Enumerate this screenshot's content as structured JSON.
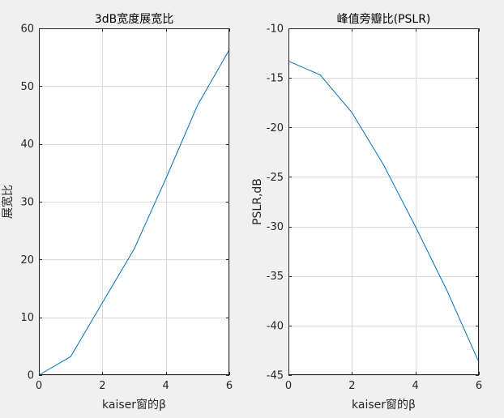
{
  "chart_data": [
    {
      "type": "line",
      "title": "3dB宽度展宽比",
      "xlabel": "kaiser窗的β",
      "ylabel": "展宽比",
      "xlim": [
        0,
        6
      ],
      "ylim": [
        0,
        60
      ],
      "xticks": [
        0,
        2,
        4,
        6
      ],
      "yticks": [
        0,
        10,
        20,
        30,
        40,
        50,
        60
      ],
      "grid": true,
      "color": "#0072BD",
      "series": [
        {
          "x": [
            0,
            1,
            2,
            3,
            4,
            5,
            6
          ],
          "y": [
            0,
            3.2,
            12.5,
            21.8,
            34.0,
            46.7,
            56.3
          ]
        }
      ]
    },
    {
      "type": "line",
      "title": "峰值旁瓣比(PSLR)",
      "xlabel": "kaiser窗的β",
      "ylabel": "PSLR,dB",
      "xlim": [
        0,
        6
      ],
      "ylim": [
        -45,
        -10
      ],
      "xticks": [
        0,
        2,
        4,
        6
      ],
      "yticks": [
        -45,
        -40,
        -35,
        -30,
        -25,
        -20,
        -15,
        -10
      ],
      "grid": true,
      "color": "#0072BD",
      "series": [
        {
          "x": [
            0,
            1,
            2,
            3,
            4,
            5,
            6
          ],
          "y": [
            -13.3,
            -14.7,
            -18.5,
            -23.8,
            -30.0,
            -36.5,
            -43.7
          ]
        }
      ]
    }
  ]
}
